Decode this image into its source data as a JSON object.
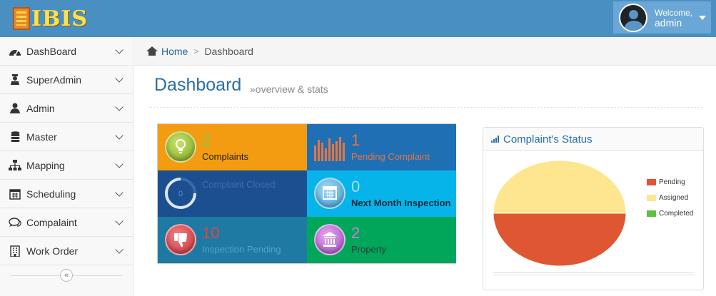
{
  "header": {
    "logo_text": "IBIS",
    "welcome": "Welcome,",
    "username": "admin"
  },
  "sidebar": {
    "items": [
      {
        "label": "DashBoard",
        "icon": "dashboard-icon"
      },
      {
        "label": "SuperAdmin",
        "icon": "super-admin-icon"
      },
      {
        "label": "Admin",
        "icon": "user-icon"
      },
      {
        "label": "Master",
        "icon": "database-icon"
      },
      {
        "label": "Mapping",
        "icon": "sitemap-icon"
      },
      {
        "label": "Scheduling",
        "icon": "calendar-icon"
      },
      {
        "label": "Compalaint",
        "icon": "comments-icon"
      },
      {
        "label": "Work Order",
        "icon": "building-icon"
      }
    ],
    "collapse_glyph": "«"
  },
  "breadcrumb": {
    "home": "Home",
    "separator": ">",
    "current": "Dashboard"
  },
  "page": {
    "title": "Dashboard",
    "subtitle": "»overview & stats"
  },
  "tiles": [
    {
      "value": "2",
      "label": "Complaints",
      "bg": "#f39c12",
      "num_color": "#8bc34a",
      "label_color": "#222",
      "icon": "lightbulb-icon"
    },
    {
      "value": "1",
      "label": "Pending Complaint",
      "bg": "#1f6fb5",
      "num_color": "#e8753c",
      "label_color": "#e8753c",
      "icon": "bar-chart-icon"
    },
    {
      "value": "0",
      "label": "Complaint Closed",
      "bg": "#1c4f8f",
      "num_color": "#5c8fcf",
      "label_color": "#3e6fad",
      "icon": "progress-ring-icon"
    },
    {
      "value": "0",
      "label": "Next Month Inspection",
      "bg": "#07b4ea",
      "num_color": "#a9dcf4",
      "label_color": "#0b2a44",
      "icon": "calendar-icon"
    },
    {
      "value": "10",
      "label": "Inspection Pending",
      "bg": "#1e7aa3",
      "num_color": "#e04545",
      "label_color": "#4ea4cc",
      "icon": "thumbs-down-icon"
    },
    {
      "value": "2",
      "label": "Property",
      "bg": "#00a65a",
      "num_color": "#c880d8",
      "label_color": "#2b3a3a",
      "icon": "institution-icon"
    }
  ],
  "status_panel": {
    "title": "Complaint's Status",
    "legend": [
      {
        "label": "Pending",
        "color": "#de5632"
      },
      {
        "label": "Assigned",
        "color": "#fde68f"
      },
      {
        "label": "Completed",
        "color": "#5fbf3f"
      }
    ]
  },
  "chart_data": {
    "type": "pie",
    "title": "Complaint's Status",
    "categories": [
      "Pending",
      "Assigned",
      "Completed"
    ],
    "values": [
      1,
      1,
      0
    ],
    "colors": [
      "#de5632",
      "#fde68f",
      "#5fbf3f"
    ],
    "legend_position": "right"
  }
}
